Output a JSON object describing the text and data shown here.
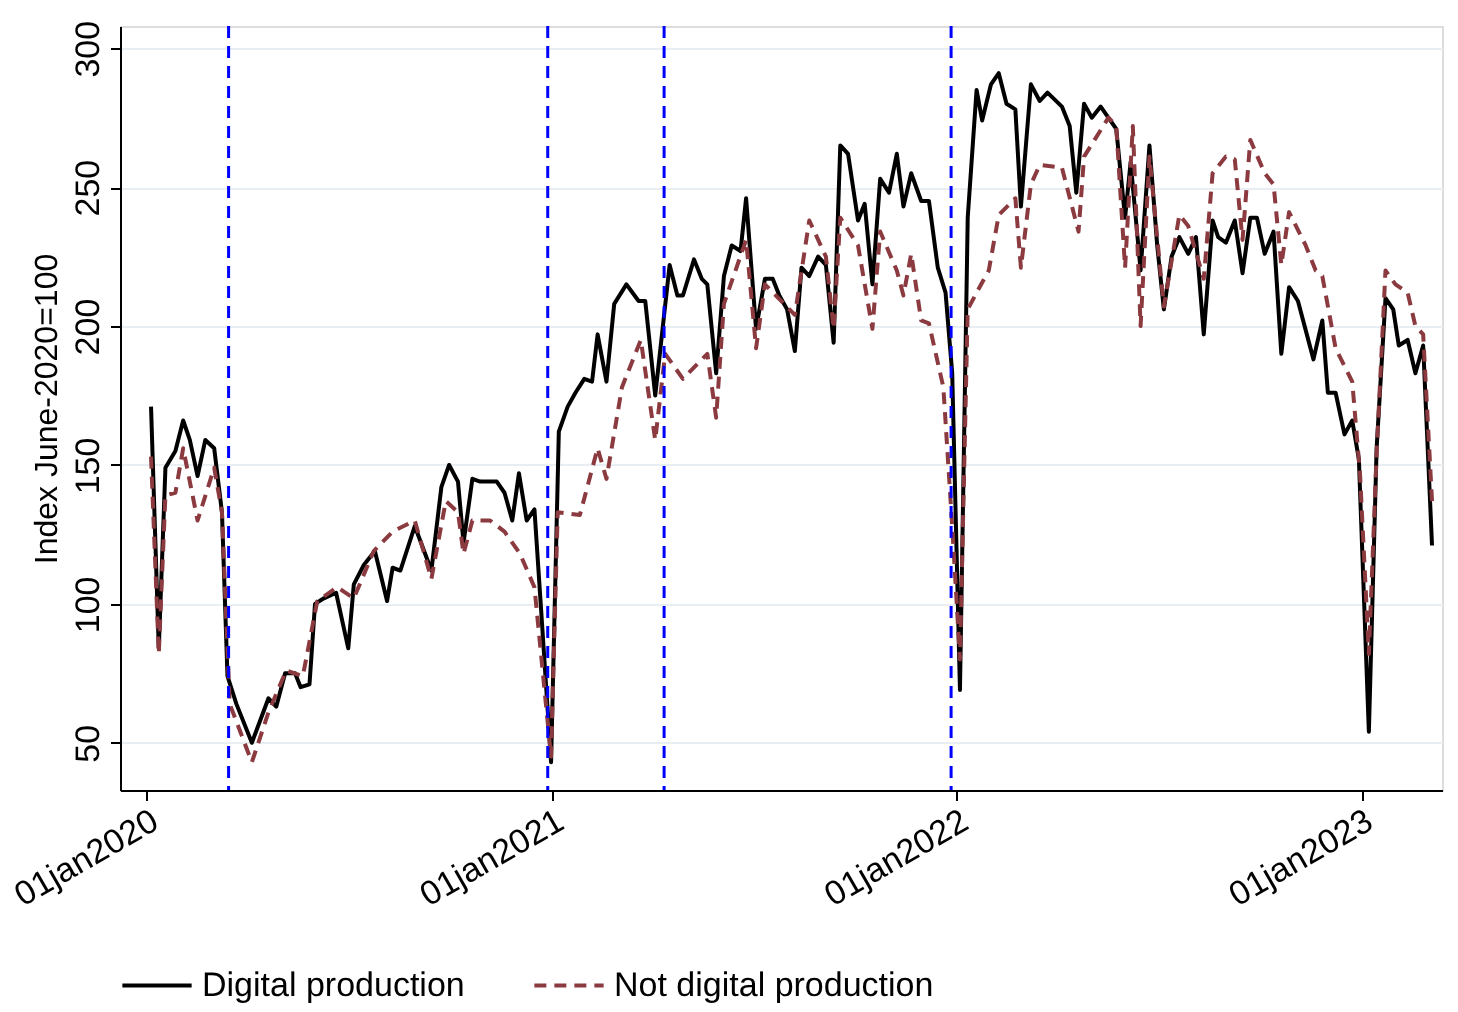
{
  "chart_data": {
    "type": "line",
    "ylabel": "Index June-2020=100",
    "xlim": [
      "2019-12-08",
      "2023-03-15"
    ],
    "ylim": [
      33,
      308
    ],
    "xticks": [
      {
        "value": "2020-01-01",
        "label": "01jan2020"
      },
      {
        "value": "2021-01-01",
        "label": "01jan2021"
      },
      {
        "value": "2022-01-01",
        "label": "01jan2022"
      },
      {
        "value": "2023-01-01",
        "label": "01jan2023"
      }
    ],
    "yticks": [
      50,
      100,
      150,
      200,
      250,
      300
    ],
    "grid": "y",
    "legend": "bottom",
    "ref_lines": [
      {
        "axis": "x",
        "value": "2020-03-15",
        "color": "#0000ff",
        "line_style": "dashed"
      },
      {
        "axis": "x",
        "value": "2020-12-28",
        "color": "#0000ff",
        "line_style": "dashed"
      },
      {
        "axis": "x",
        "value": "2021-04-12",
        "color": "#0000ff",
        "line_style": "dashed"
      },
      {
        "axis": "x",
        "value": "2021-12-27",
        "color": "#0000ff",
        "line_style": "dashed"
      }
    ],
    "series": [
      {
        "name": "Digital production",
        "color": "#000000",
        "line_style": "solid",
        "x": [
          "2020-01-05",
          "2020-01-12",
          "2020-01-18",
          "2020-01-27",
          "2020-02-03",
          "2020-02-09",
          "2020-02-16",
          "2020-02-23",
          "2020-03-02",
          "2020-03-09",
          "2020-03-14",
          "2020-03-22",
          "2020-04-05",
          "2020-04-20",
          "2020-04-27",
          "2020-05-05",
          "2020-05-14",
          "2020-05-19",
          "2020-05-27",
          "2020-06-01",
          "2020-06-09",
          "2020-06-20",
          "2020-07-01",
          "2020-07-06",
          "2020-07-15",
          "2020-07-25",
          "2020-08-05",
          "2020-08-10",
          "2020-08-17",
          "2020-08-30",
          "2020-09-14",
          "2020-09-23",
          "2020-09-30",
          "2020-10-08",
          "2020-10-13",
          "2020-10-21",
          "2020-10-28",
          "2020-11-12",
          "2020-11-19",
          "2020-11-26",
          "2020-12-02",
          "2020-12-09",
          "2020-12-16",
          "2020-12-22",
          "2020-12-31",
          "2021-01-07",
          "2021-01-15",
          "2021-01-22",
          "2021-01-30",
          "2021-02-06",
          "2021-02-11",
          "2021-02-19",
          "2021-02-26",
          "2021-03-09",
          "2021-03-20",
          "2021-03-26",
          "2021-04-04",
          "2021-04-17",
          "2021-04-24",
          "2021-04-29",
          "2021-05-09",
          "2021-05-16",
          "2021-05-21",
          "2021-05-29",
          "2021-06-05",
          "2021-06-12",
          "2021-06-20",
          "2021-06-25",
          "2021-07-04",
          "2021-07-12",
          "2021-07-19",
          "2021-07-25",
          "2021-08-01",
          "2021-08-08",
          "2021-08-14",
          "2021-08-21",
          "2021-08-29",
          "2021-09-05",
          "2021-09-12",
          "2021-09-18",
          "2021-09-25",
          "2021-10-04",
          "2021-10-10",
          "2021-10-17",
          "2021-10-24",
          "2021-11-01",
          "2021-11-08",
          "2021-11-14",
          "2021-11-21",
          "2021-11-30",
          "2021-12-07",
          "2021-12-15",
          "2021-12-22",
          "2021-12-28",
          "2022-01-04",
          "2022-01-11",
          "2022-01-19",
          "2022-01-24",
          "2022-02-01",
          "2022-02-08",
          "2022-02-15",
          "2022-02-23",
          "2022-02-28",
          "2022-03-09",
          "2022-03-17",
          "2022-03-24",
          "2022-04-06",
          "2022-04-13",
          "2022-04-19",
          "2022-04-26",
          "2022-05-03",
          "2022-05-11",
          "2022-05-25",
          "2022-06-02",
          "2022-06-07",
          "2022-06-16",
          "2022-06-24",
          "2022-07-01",
          "2022-07-07",
          "2022-07-14",
          "2022-07-21",
          "2022-07-29",
          "2022-08-05",
          "2022-08-12",
          "2022-08-20",
          "2022-08-25",
          "2022-09-01",
          "2022-09-09",
          "2022-09-16",
          "2022-09-23",
          "2022-09-29",
          "2022-10-06",
          "2022-10-14",
          "2022-10-21",
          "2022-10-28",
          "2022-11-05",
          "2022-11-19",
          "2022-11-27",
          "2022-12-02",
          "2022-12-09",
          "2022-12-17",
          "2022-12-24",
          "2022-12-30",
          "2023-01-08",
          "2023-01-15",
          "2023-01-23",
          "2023-01-30",
          "2023-02-04",
          "2023-02-12",
          "2023-02-19",
          "2023-02-26",
          "2023-03-06"
        ],
        "values": [
          171,
          84,
          149,
          155,
          166,
          159,
          146,
          159,
          156,
          133,
          74,
          64,
          50,
          66,
          63,
          75,
          75,
          70,
          71,
          100,
          102,
          104,
          84,
          107,
          114,
          119,
          101,
          113,
          112,
          128,
          112,
          142,
          150,
          144,
          122,
          145,
          144,
          144,
          140,
          130,
          147,
          130,
          134,
          98,
          43,
          162,
          171,
          176,
          181,
          180,
          197,
          180,
          208,
          215,
          209,
          209,
          175,
          222,
          211,
          211,
          224,
          217,
          215,
          183,
          218,
          229,
          227,
          246,
          199,
          217,
          217,
          211,
          206,
          191,
          221,
          218,
          225,
          222,
          194,
          265,
          262,
          238,
          244,
          215,
          253,
          248,
          262,
          243,
          255,
          245,
          245,
          221,
          212,
          183,
          69,
          239,
          285,
          274,
          287,
          291,
          280,
          278,
          243,
          287,
          281,
          284,
          279,
          272,
          248,
          280,
          275,
          279,
          271,
          239,
          259,
          220,
          265,
          229,
          206,
          225,
          232,
          226,
          232,
          197,
          238,
          232,
          230,
          238,
          219,
          239,
          239,
          226,
          234,
          190,
          214,
          209,
          188,
          202,
          176,
          176,
          161,
          166,
          152,
          54,
          156,
          210,
          206,
          193,
          195,
          183,
          193,
          121
        ]
      },
      {
        "name": "Not digital production",
        "color": "#8b3a3f",
        "line_style": "dashed",
        "x": [
          "2020-01-05",
          "2020-01-12",
          "2020-01-18",
          "2020-01-27",
          "2020-02-03",
          "2020-02-16",
          "2020-03-02",
          "2020-03-09",
          "2020-03-16",
          "2020-04-05",
          "2020-04-20",
          "2020-05-06",
          "2020-05-21",
          "2020-06-03",
          "2020-06-21",
          "2020-07-06",
          "2020-07-24",
          "2020-08-10",
          "2020-08-30",
          "2020-09-14",
          "2020-09-27",
          "2020-10-08",
          "2020-10-13",
          "2020-10-21",
          "2020-11-06",
          "2020-11-19",
          "2020-12-03",
          "2020-12-16",
          "2020-12-31",
          "2021-01-06",
          "2021-01-26",
          "2021-02-11",
          "2021-02-19",
          "2021-03-05",
          "2021-03-22",
          "2021-04-04",
          "2021-04-13",
          "2021-04-29",
          "2021-05-21",
          "2021-05-29",
          "2021-06-05",
          "2021-06-25",
          "2021-07-04",
          "2021-07-12",
          "2021-08-08",
          "2021-08-21",
          "2021-09-05",
          "2021-09-12",
          "2021-09-18",
          "2021-10-04",
          "2021-10-17",
          "2021-10-24",
          "2021-11-08",
          "2021-11-14",
          "2021-11-21",
          "2021-11-30",
          "2021-12-07",
          "2021-12-20",
          "2021-12-28",
          "2022-01-04",
          "2022-01-11",
          "2022-01-19",
          "2022-01-30",
          "2022-02-08",
          "2022-02-23",
          "2022-02-28",
          "2022-03-09",
          "2022-03-17",
          "2022-04-06",
          "2022-04-21",
          "2022-04-26",
          "2022-05-18",
          "2022-05-25",
          "2022-06-02",
          "2022-06-09",
          "2022-06-16",
          "2022-06-24",
          "2022-07-07",
          "2022-07-21",
          "2022-07-29",
          "2022-08-12",
          "2022-08-20",
          "2022-09-01",
          "2022-09-09",
          "2022-09-16",
          "2022-09-23",
          "2022-10-06",
          "2022-10-14",
          "2022-10-21",
          "2022-10-28",
          "2022-11-12",
          "2022-11-21",
          "2022-11-27",
          "2022-12-09",
          "2022-12-24",
          "2022-12-31",
          "2023-01-08",
          "2023-01-15",
          "2023-01-23",
          "2023-02-01",
          "2023-02-12",
          "2023-02-19",
          "2023-02-26",
          "2023-03-06"
        ],
        "values": [
          153,
          82,
          139,
          140,
          156,
          130,
          149,
          133,
          64,
          43,
          61,
          76,
          74,
          101,
          106,
          102,
          119,
          126,
          130,
          109,
          137,
          133,
          118,
          130,
          130,
          126,
          118,
          106,
          45,
          133,
          132,
          156,
          145,
          178,
          195,
          159,
          190,
          181,
          190,
          167,
          208,
          231,
          192,
          215,
          204,
          238,
          225,
          199,
          239,
          229,
          199,
          234,
          220,
          211,
          226,
          202,
          201,
          178,
          128,
          80,
          206,
          212,
          220,
          240,
          246,
          221,
          251,
          258,
          257,
          234,
          261,
          275,
          272,
          221,
          272,
          200,
          261,
          207,
          240,
          236,
          217,
          255,
          261,
          260,
          231,
          267,
          255,
          251,
          222,
          241,
          229,
          220,
          218,
          192,
          180,
          147,
          82,
          154,
          220,
          215,
          212,
          200,
          197,
          137
        ]
      }
    ]
  }
}
